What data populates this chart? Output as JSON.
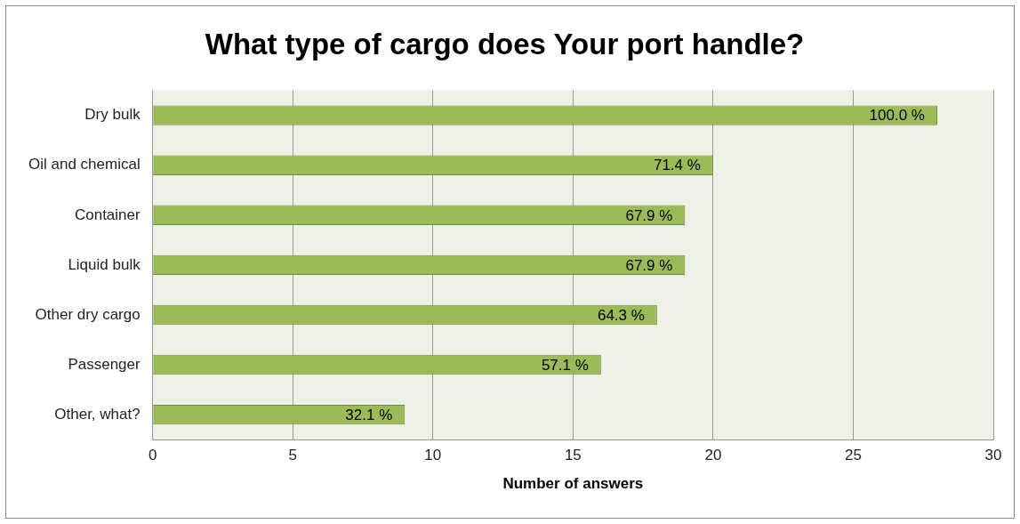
{
  "chart_data": {
    "type": "bar",
    "orientation": "horizontal",
    "title": "What type of cargo does Your port handle?",
    "xlabel": "Number of answers",
    "categories": [
      "Dry bulk",
      "Oil and chemical",
      "Container",
      "Liquid bulk",
      "Other dry cargo",
      "Passenger",
      "Other, what?"
    ],
    "values": [
      28,
      20,
      19,
      19,
      18,
      16,
      9
    ],
    "annotations": [
      {
        "text": "100.0 %",
        "x": 28,
        "y": "Dry bulk"
      },
      {
        "text": "71.4 %",
        "x": 20,
        "y": "Oil and chemical"
      },
      {
        "text": "67.9 %",
        "x": 19,
        "y": "Container"
      },
      {
        "text": "67.9 %",
        "x": 19,
        "y": "Liquid bulk"
      },
      {
        "text": "64.3 %",
        "x": 18,
        "y": "Other dry cargo"
      },
      {
        "text": "57.1 %",
        "x": 16,
        "y": "Passenger"
      },
      {
        "text": "32.1 %",
        "x": 9,
        "y": "Other, what?"
      }
    ],
    "color": "#9bbb59",
    "xlim": [
      0,
      30
    ],
    "xticks": [
      0,
      5,
      10,
      15,
      20,
      25,
      30
    ],
    "grid": "x"
  }
}
